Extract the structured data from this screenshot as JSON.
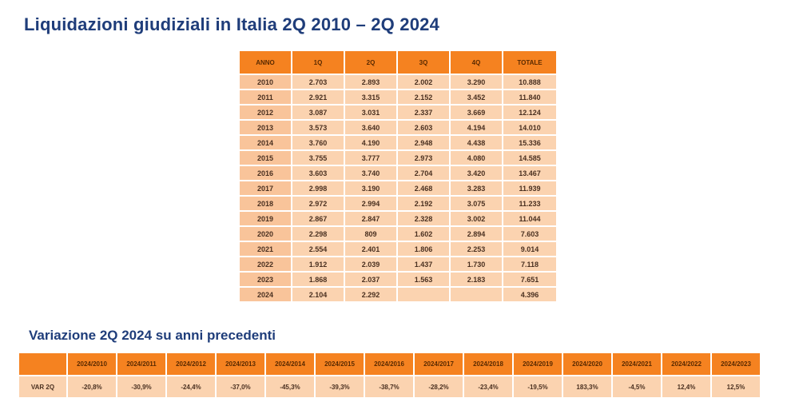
{
  "title": "Liquidazioni giudiziali in Italia 2Q 2010 – 2Q 2024",
  "subtitle": "Variazione 2Q 2024 su anni precedenti",
  "main_table": {
    "headers": [
      "ANNO",
      "1Q",
      "2Q",
      "3Q",
      "4Q",
      "TOTALE"
    ],
    "rows": [
      [
        "2010",
        "2.703",
        "2.893",
        "2.002",
        "3.290",
        "10.888"
      ],
      [
        "2011",
        "2.921",
        "3.315",
        "2.152",
        "3.452",
        "11.840"
      ],
      [
        "2012",
        "3.087",
        "3.031",
        "2.337",
        "3.669",
        "12.124"
      ],
      [
        "2013",
        "3.573",
        "3.640",
        "2.603",
        "4.194",
        "14.010"
      ],
      [
        "2014",
        "3.760",
        "4.190",
        "2.948",
        "4.438",
        "15.336"
      ],
      [
        "2015",
        "3.755",
        "3.777",
        "2.973",
        "4.080",
        "14.585"
      ],
      [
        "2016",
        "3.603",
        "3.740",
        "2.704",
        "3.420",
        "13.467"
      ],
      [
        "2017",
        "2.998",
        "3.190",
        "2.468",
        "3.283",
        "11.939"
      ],
      [
        "2018",
        "2.972",
        "2.994",
        "2.192",
        "3.075",
        "11.233"
      ],
      [
        "2019",
        "2.867",
        "2.847",
        "2.328",
        "3.002",
        "11.044"
      ],
      [
        "2020",
        "2.298",
        "809",
        "1.602",
        "2.894",
        "7.603"
      ],
      [
        "2021",
        "2.554",
        "2.401",
        "1.806",
        "2.253",
        "9.014"
      ],
      [
        "2022",
        "1.912",
        "2.039",
        "1.437",
        "1.730",
        "7.118"
      ],
      [
        "2023",
        "1.868",
        "2.037",
        "1.563",
        "2.183",
        "7.651"
      ],
      [
        "2024",
        "2.104",
        "2.292",
        "",
        "",
        "4.396"
      ]
    ]
  },
  "var_table": {
    "headers": [
      "",
      "2024/2010",
      "2024/2011",
      "2024/2012",
      "2024/2013",
      "2024/2014",
      "2024/2015",
      "2024/2016",
      "2024/2017",
      "2024/2018",
      "2024/2019",
      "2024/2020",
      "2024/2021",
      "2024/2022",
      "2024/2023"
    ],
    "row": [
      "VAR 2Q",
      "-20,8%",
      "-30,9%",
      "-24,4%",
      "-37,0%",
      "-45,3%",
      "-39,3%",
      "-38,7%",
      "-28,2%",
      "-23,4%",
      "-19,5%",
      "183,3%",
      "-4,5%",
      "12,4%",
      "12,5%"
    ]
  },
  "colors": {
    "title": "#1f3d7a",
    "header_bg": "#f58220",
    "cell_bg": "#fbd3b0"
  }
}
